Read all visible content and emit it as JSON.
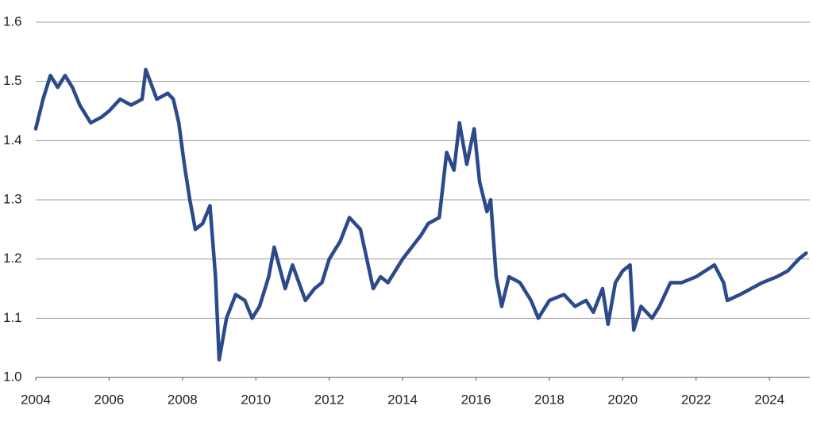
{
  "chart_data": {
    "type": "line",
    "color": "#2b4a8c",
    "grid": true,
    "x": [
      2004.0,
      2004.2,
      2004.4,
      2004.6,
      2004.8,
      2005.0,
      2005.2,
      2005.5,
      2005.8,
      2006.0,
      2006.3,
      2006.6,
      2006.9,
      2007.0,
      2007.3,
      2007.6,
      2007.75,
      2007.9,
      2008.05,
      2008.2,
      2008.35,
      2008.55,
      2008.75,
      2008.9,
      2009.0,
      2009.2,
      2009.45,
      2009.7,
      2009.9,
      2010.1,
      2010.35,
      2010.5,
      2010.8,
      2011.0,
      2011.35,
      2011.6,
      2011.8,
      2012.0,
      2012.3,
      2012.55,
      2012.85,
      2013.2,
      2013.4,
      2013.6,
      2014.0,
      2014.25,
      2014.5,
      2014.7,
      2015.0,
      2015.2,
      2015.4,
      2015.55,
      2015.75,
      2015.95,
      2016.1,
      2016.3,
      2016.4,
      2016.55,
      2016.7,
      2016.9,
      2017.2,
      2017.5,
      2017.7,
      2018.0,
      2018.4,
      2018.7,
      2019.0,
      2019.2,
      2019.45,
      2019.6,
      2019.8,
      2020.0,
      2020.2,
      2020.3,
      2020.5,
      2020.8,
      2021.0,
      2021.3,
      2021.6,
      2022.0,
      2022.5,
      2022.75,
      2022.85,
      2023.2,
      2023.5,
      2023.8,
      2024.2,
      2024.5,
      2024.8,
      2025.0
    ],
    "values": [
      1.42,
      1.47,
      1.51,
      1.49,
      1.51,
      1.49,
      1.46,
      1.43,
      1.44,
      1.45,
      1.47,
      1.46,
      1.47,
      1.52,
      1.47,
      1.48,
      1.47,
      1.43,
      1.36,
      1.3,
      1.25,
      1.26,
      1.29,
      1.17,
      1.03,
      1.1,
      1.14,
      1.13,
      1.1,
      1.12,
      1.17,
      1.22,
      1.15,
      1.19,
      1.13,
      1.15,
      1.16,
      1.2,
      1.23,
      1.27,
      1.25,
      1.15,
      1.17,
      1.16,
      1.2,
      1.22,
      1.24,
      1.26,
      1.27,
      1.38,
      1.35,
      1.43,
      1.36,
      1.42,
      1.33,
      1.28,
      1.3,
      1.17,
      1.12,
      1.17,
      1.16,
      1.13,
      1.1,
      1.13,
      1.14,
      1.12,
      1.13,
      1.11,
      1.15,
      1.09,
      1.16,
      1.18,
      1.19,
      1.08,
      1.12,
      1.1,
      1.12,
      1.16,
      1.16,
      1.17,
      1.19,
      1.16,
      1.13,
      1.14,
      1.15,
      1.16,
      1.17,
      1.18,
      1.2,
      1.21
    ],
    "xlim": [
      2004,
      2025.1
    ],
    "xticks": [
      2004,
      2006,
      2008,
      2010,
      2012,
      2014,
      2016,
      2018,
      2020,
      2022,
      2024
    ],
    "ylim": [
      1.0,
      1.6
    ],
    "yticks": [
      {
        "value": 1.0,
        "label": "1.0"
      },
      1.1,
      1.2,
      1.3,
      1.4,
      1.5,
      1.6
    ]
  }
}
